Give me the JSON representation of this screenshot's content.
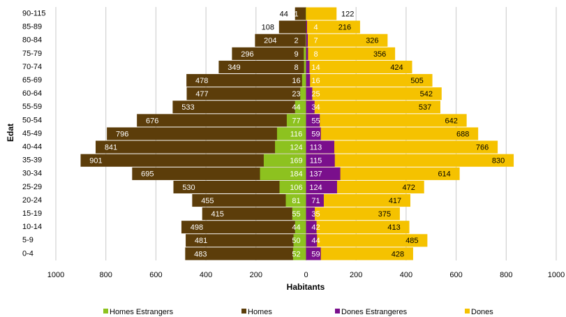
{
  "chart_data": {
    "type": "pyramid",
    "categories": [
      "90-115",
      "85-89",
      "80-84",
      "75-79",
      "70-74",
      "65-69",
      "60-64",
      "55-59",
      "50-54",
      "45-49",
      "40-44",
      "35-39",
      "30-34",
      "25-29",
      "20-24",
      "15-19",
      "10-14",
      "5-9",
      "0-4"
    ],
    "xlabel": "Habitants",
    "ylabel": "Edat",
    "xlim": [
      -1000,
      1000
    ],
    "xticks": [
      {
        "value": -1000,
        "label": "1000"
      },
      {
        "value": -800,
        "label": "800"
      },
      {
        "value": -600,
        "label": "600"
      },
      {
        "value": -400,
        "label": "400"
      },
      {
        "value": -200,
        "label": "200"
      },
      0,
      200,
      400,
      600,
      800,
      1000
    ],
    "grid": true,
    "legend": "bottom",
    "series": [
      {
        "name": "Homes Estrangers",
        "color": "#8dc21f",
        "side": "left",
        "values": [
          1,
          null,
          2,
          9,
          8,
          16,
          23,
          44,
          77,
          116,
          124,
          169,
          184,
          106,
          81,
          55,
          44,
          50,
          52
        ]
      },
      {
        "name": "Homes",
        "color": "#5c3d0a",
        "side": "left",
        "values": [
          44,
          108,
          204,
          296,
          349,
          478,
          477,
          533,
          676,
          796,
          841,
          901,
          695,
          530,
          455,
          415,
          498,
          481,
          483
        ]
      },
      {
        "name": "Dones Estrangeres",
        "color": "#7a0f8c",
        "side": "right",
        "values": [
          null,
          4,
          7,
          8,
          14,
          16,
          25,
          34,
          55,
          59,
          113,
          115,
          137,
          124,
          71,
          35,
          42,
          44,
          59
        ]
      },
      {
        "name": "Dones",
        "color": "#f5c200",
        "side": "right",
        "values": [
          122,
          216,
          326,
          356,
          424,
          505,
          542,
          537,
          642,
          688,
          766,
          830,
          614,
          472,
          417,
          375,
          413,
          485,
          428
        ]
      }
    ]
  }
}
